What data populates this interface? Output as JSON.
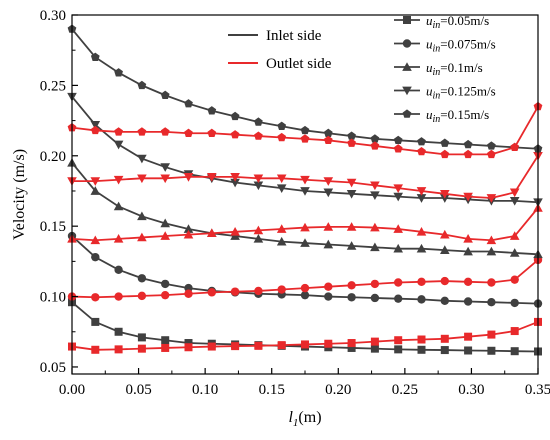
{
  "chart_data": {
    "type": "line",
    "title": "",
    "xlabel_main": "l",
    "xlabel_sub": "1",
    "xlabel_unit": "(m)",
    "ylabel": "Velocity (m/s)",
    "xlim": [
      0,
      0.35
    ],
    "ylim": [
      0.045,
      0.3
    ],
    "x_ticks": [
      "0.00",
      "0.05",
      "0.10",
      "0.15",
      "0.20",
      "0.25",
      "0.30",
      "0.35"
    ],
    "y_ticks": [
      "0.05",
      "0.10",
      "0.15",
      "0.20",
      "0.25",
      "0.30"
    ],
    "grid": false,
    "legend_sides": {
      "placement": "top-center",
      "entries": [
        {
          "name": "Inlet side",
          "color": "#404040"
        },
        {
          "name": "Outlet side",
          "color": "#e8292b"
        }
      ]
    },
    "legend_series": {
      "placement": "top-right",
      "entries": [
        {
          "var": "u",
          "sub": "in",
          "value": "=0.05m/s",
          "marker": "square"
        },
        {
          "var": "u",
          "sub": "in",
          "value": "=0.075m/s",
          "marker": "circle"
        },
        {
          "var": "u",
          "sub": "in",
          "value": "=0.1m/s",
          "marker": "triangle-up"
        },
        {
          "var": "u",
          "sub": "in",
          "value": "=0.125m/s",
          "marker": "triangle-down"
        },
        {
          "var": "u",
          "sub": "in",
          "value": "=0.15m/s",
          "marker": "pentagon"
        }
      ]
    },
    "x": [
      0,
      0.0175,
      0.035,
      0.0525,
      0.07,
      0.0875,
      0.105,
      0.1225,
      0.14,
      0.1575,
      0.175,
      0.1925,
      0.21,
      0.2275,
      0.245,
      0.2625,
      0.28,
      0.2975,
      0.315,
      0.3325,
      0.35
    ],
    "series": [
      {
        "side": "inlet",
        "speed": "0.05",
        "marker": "square",
        "color": "#404040",
        "values": [
          0.096,
          0.082,
          0.075,
          0.071,
          0.069,
          0.067,
          0.0665,
          0.066,
          0.0655,
          0.065,
          0.0645,
          0.064,
          0.0635,
          0.063,
          0.0625,
          0.0622,
          0.062,
          0.0617,
          0.0615,
          0.0612,
          0.061
        ]
      },
      {
        "side": "outlet",
        "speed": "0.05",
        "marker": "square",
        "color": "#e8292b",
        "values": [
          0.0645,
          0.0622,
          0.0625,
          0.063,
          0.0635,
          0.064,
          0.0645,
          0.0648,
          0.065,
          0.0655,
          0.066,
          0.0665,
          0.067,
          0.068,
          0.069,
          0.0695,
          0.07,
          0.0715,
          0.073,
          0.0755,
          0.082
        ]
      },
      {
        "side": "inlet",
        "speed": "0.075",
        "marker": "circle",
        "color": "#404040",
        "values": [
          0.143,
          0.128,
          0.119,
          0.113,
          0.109,
          0.106,
          0.104,
          0.103,
          0.102,
          0.1015,
          0.101,
          0.1,
          0.0995,
          0.099,
          0.0985,
          0.098,
          0.097,
          0.0965,
          0.096,
          0.0955,
          0.095
        ]
      },
      {
        "side": "outlet",
        "speed": "0.075",
        "marker": "circle",
        "color": "#e8292b",
        "values": [
          0.1,
          0.0995,
          0.1,
          0.1005,
          0.101,
          0.102,
          0.103,
          0.1035,
          0.104,
          0.105,
          0.106,
          0.107,
          0.108,
          0.109,
          0.11,
          0.1105,
          0.111,
          0.1105,
          0.11,
          0.112,
          0.126
        ]
      },
      {
        "side": "inlet",
        "speed": "0.1",
        "marker": "triangle-up",
        "color": "#404040",
        "values": [
          0.195,
          0.175,
          0.164,
          0.157,
          0.152,
          0.148,
          0.145,
          0.143,
          0.141,
          0.139,
          0.138,
          0.137,
          0.136,
          0.135,
          0.134,
          0.134,
          0.133,
          0.132,
          0.132,
          0.131,
          0.13
        ]
      },
      {
        "side": "outlet",
        "speed": "0.1",
        "marker": "triangle-up",
        "color": "#e8292b",
        "values": [
          0.141,
          0.14,
          0.141,
          0.142,
          0.143,
          0.144,
          0.145,
          0.146,
          0.147,
          0.148,
          0.149,
          0.1495,
          0.1495,
          0.149,
          0.148,
          0.146,
          0.144,
          0.141,
          0.14,
          0.143,
          0.163
        ]
      },
      {
        "side": "inlet",
        "speed": "0.125",
        "marker": "triangle-down",
        "color": "#404040",
        "values": [
          0.242,
          0.222,
          0.208,
          0.198,
          0.192,
          0.187,
          0.184,
          0.181,
          0.179,
          0.177,
          0.175,
          0.174,
          0.173,
          0.172,
          0.171,
          0.17,
          0.17,
          0.169,
          0.168,
          0.168,
          0.167
        ]
      },
      {
        "side": "outlet",
        "speed": "0.125",
        "marker": "triangle-down",
        "color": "#e8292b",
        "values": [
          0.182,
          0.182,
          0.183,
          0.184,
          0.184,
          0.185,
          0.185,
          0.185,
          0.184,
          0.184,
          0.183,
          0.182,
          0.181,
          0.179,
          0.177,
          0.175,
          0.173,
          0.171,
          0.17,
          0.174,
          0.2
        ]
      },
      {
        "side": "inlet",
        "speed": "0.15",
        "marker": "pentagon",
        "color": "#404040",
        "values": [
          0.29,
          0.27,
          0.259,
          0.25,
          0.243,
          0.237,
          0.232,
          0.228,
          0.224,
          0.221,
          0.218,
          0.216,
          0.214,
          0.212,
          0.211,
          0.21,
          0.209,
          0.208,
          0.207,
          0.206,
          0.205
        ]
      },
      {
        "side": "outlet",
        "speed": "0.15",
        "marker": "pentagon",
        "color": "#e8292b",
        "values": [
          0.22,
          0.218,
          0.217,
          0.217,
          0.217,
          0.216,
          0.216,
          0.215,
          0.214,
          0.213,
          0.212,
          0.211,
          0.209,
          0.207,
          0.205,
          0.203,
          0.201,
          0.201,
          0.201,
          0.206,
          0.235
        ]
      }
    ]
  }
}
